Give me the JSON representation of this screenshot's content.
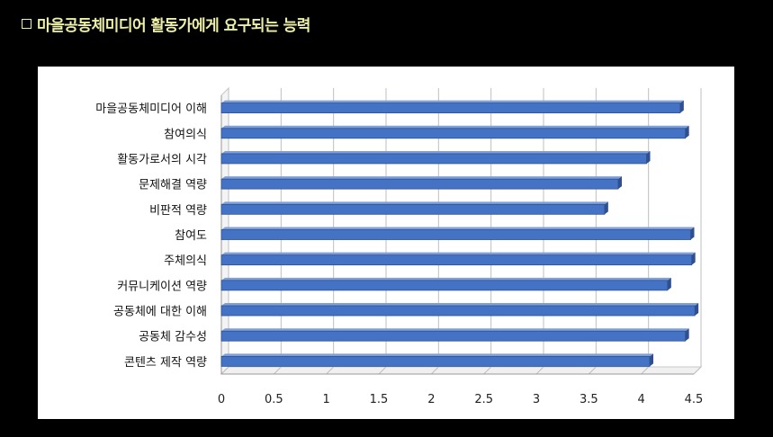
{
  "slide": {
    "title": "마을공동체미디어 활동가에게 요구되는 능력"
  },
  "colors": {
    "bar": "#4472c4",
    "title": "#eef0a8"
  },
  "chart_data": {
    "type": "bar",
    "orientation": "horizontal",
    "categories": [
      "마을공동체미디어 이해",
      "참여의식",
      "활동가로서의 시각",
      "문제해결 역량",
      "비판적 역량",
      "참여도",
      "주체의식",
      "커뮤니케이션 역량",
      "공동체에 대한 이해",
      "공동체 감수성",
      "콘텐츠 제작 역량"
    ],
    "values": [
      4.37,
      4.42,
      4.05,
      3.78,
      3.65,
      4.47,
      4.48,
      4.25,
      4.51,
      4.42,
      4.08
    ],
    "xlim": [
      0,
      4.5
    ],
    "xticks": [
      "0",
      "0.5",
      "1",
      "1.5",
      "2",
      "2.5",
      "3",
      "3.5",
      "4",
      "4.5"
    ],
    "grid": true,
    "legend": "none"
  }
}
